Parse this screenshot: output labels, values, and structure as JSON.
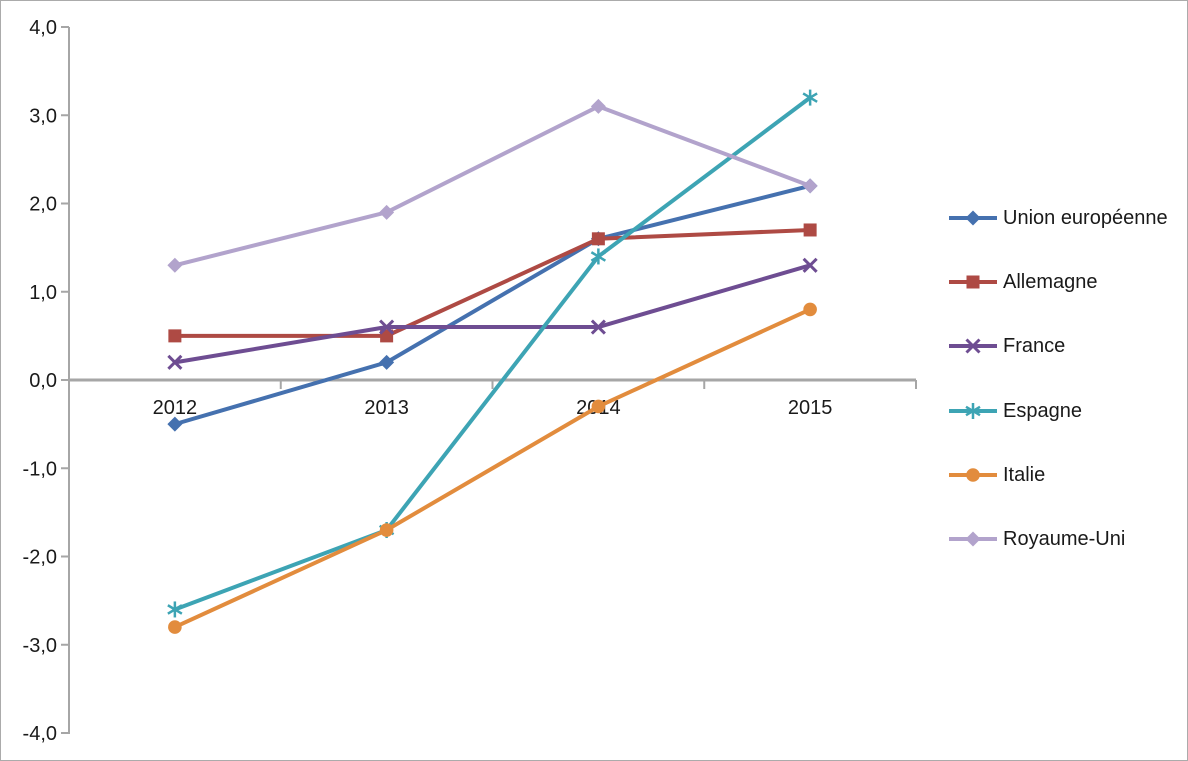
{
  "chart_data": {
    "type": "line",
    "title": "",
    "xlabel": "",
    "ylabel": "",
    "categories": [
      "2012",
      "2013",
      "2014",
      "2015"
    ],
    "series": [
      {
        "name": "Union européenne",
        "values": [
          -0.5,
          0.2,
          1.6,
          2.2
        ],
        "color": "#4571AF",
        "marker": "diamond"
      },
      {
        "name": "Allemagne",
        "values": [
          0.5,
          0.5,
          1.6,
          1.7
        ],
        "color": "#AE4A44",
        "marker": "square"
      },
      {
        "name": "France",
        "values": [
          0.2,
          0.6,
          0.6,
          1.3
        ],
        "color": "#6E4D92",
        "marker": "x"
      },
      {
        "name": "Espagne",
        "values": [
          -2.6,
          -1.7,
          1.4,
          3.2
        ],
        "color": "#3DA4B4",
        "marker": "asterisk"
      },
      {
        "name": "Italie",
        "values": [
          -2.8,
          -1.7,
          -0.3,
          0.8
        ],
        "color": "#E28C3D",
        "marker": "circle"
      },
      {
        "name": "Royaume-Uni",
        "values": [
          1.3,
          1.9,
          3.1,
          2.2
        ],
        "color": "#B2A3CC",
        "marker": "diamond"
      }
    ],
    "y_ticks": [
      {
        "label": "4,0",
        "value": 4
      },
      {
        "label": "3,0",
        "value": 3
      },
      {
        "label": "2,0",
        "value": 2
      },
      {
        "label": "1,0",
        "value": 1
      },
      {
        "label": "0,0",
        "value": 0
      },
      {
        "label": "-1,0",
        "value": -1
      },
      {
        "label": "-2,0",
        "value": -2
      },
      {
        "label": "-3,0",
        "value": -3
      },
      {
        "label": "-4,0",
        "value": -4
      }
    ],
    "ylim": [
      -4,
      4
    ],
    "grid": false,
    "legend_position": "right"
  },
  "colors": {
    "axis": "#A6A6A6",
    "text": "#1A1A1A",
    "background": "#FFFFFF",
    "border": "#ABABAB"
  }
}
